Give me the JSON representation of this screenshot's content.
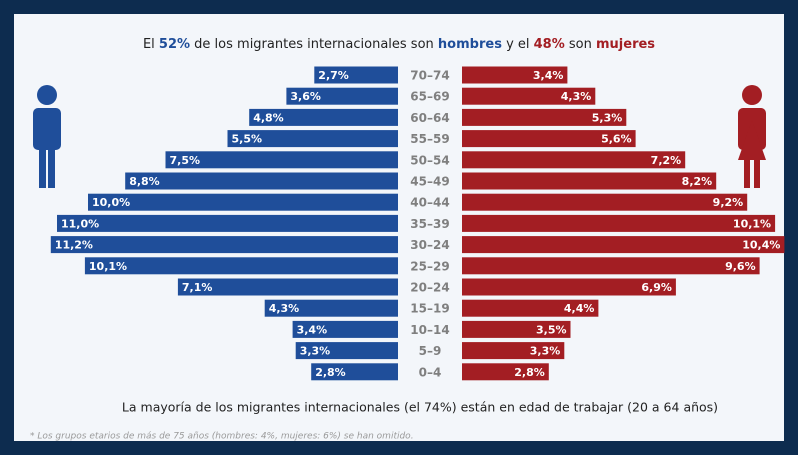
{
  "chart_data": {
    "type": "pyramid",
    "title": [
      "El ",
      "52%",
      " de los migrantes internacionales son ",
      " y el ",
      "48%",
      " son "
    ],
    "annotation": "La mayoría de los migrantes internacionales (el 74%) están en edad de trabajar (20 a 64 años)",
    "footnote": "* Los grupos etarios de más de 75 años (hombres: 4%, mujeres: 6%) se han omitido.",
    "categories": [
      "70–74",
      "65–69",
      "60–64",
      "55–59",
      "50–54",
      "45–49",
      "40–44",
      "35–39",
      "30–24",
      "25–29",
      "20–24",
      "15–19",
      "10–14",
      "5–9",
      "0–4"
    ],
    "series": [
      {
        "name": "hombres",
        "color": "#1f4e9a",
        "values": [
          2.7,
          3.6,
          4.8,
          5.5,
          7.5,
          8.8,
          10.0,
          11.0,
          11.2,
          10.1,
          7.1,
          4.3,
          3.4,
          3.3,
          2.8
        ],
        "value_labels": [
          "2,7%",
          "3,6%",
          "4,8%",
          "5,5%",
          "7,5%",
          "8,8%",
          "10,0%",
          "11,0%",
          "11,2%",
          "10,1%",
          "7,1%",
          "4,3%",
          "3,4%",
          "3,3%",
          "2,8%"
        ]
      },
      {
        "name": "mujeres",
        "color": "#a31e23",
        "values": [
          3.4,
          4.3,
          5.3,
          5.6,
          7.2,
          8.2,
          9.2,
          10.1,
          10.4,
          9.6,
          6.9,
          4.4,
          3.5,
          3.3,
          2.8
        ],
        "value_labels": [
          "3,4%",
          "4,3%",
          "5,3%",
          "5,6%",
          "7,2%",
          "8,2%",
          "9,2%",
          "10,1%",
          "10,4%",
          "9,6%",
          "6,9%",
          "4,4%",
          "3,5%",
          "3,3%",
          "2,8%"
        ]
      }
    ]
  }
}
